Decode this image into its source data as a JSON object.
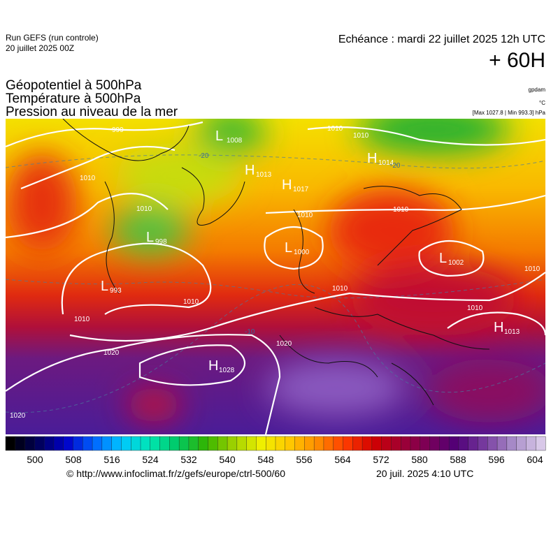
{
  "header": {
    "run": "Run GEFS (run controle)",
    "run_date": "20 juillet 2025 00Z",
    "valid": "Echéance : mardi 22 juillet 2025 12h UTC",
    "lead": "+ 60H"
  },
  "titles": [
    "Géopotentiel à 500hPa",
    "Température à 500hPa",
    "Pression au niveau de la mer"
  ],
  "units": {
    "geopotential": "gpdam",
    "temperature": "°C",
    "pressure": "[Max 1027.8 | Min 993.3] hPa"
  },
  "centers": [
    {
      "letter": "L",
      "value": "1008"
    },
    {
      "letter": "H",
      "value": "1013"
    },
    {
      "letter": "H",
      "value": "1017"
    },
    {
      "letter": "H",
      "value": "1014"
    },
    {
      "letter": "L",
      "value": "998"
    },
    {
      "letter": "L",
      "value": "1000"
    },
    {
      "letter": "L",
      "value": "1002"
    },
    {
      "letter": "L",
      "value": "993"
    },
    {
      "letter": "H",
      "value": "1013"
    },
    {
      "letter": "H",
      "value": "1028"
    }
  ],
  "isobar_labels": [
    "999",
    "1010",
    "1010",
    "1010",
    "1010",
    "1010",
    "1010",
    "1010",
    "1010",
    "1010",
    "1010",
    "1020",
    "1020",
    "1020",
    "1010"
  ],
  "temperature_labels": [
    "-20",
    "-20",
    "-10"
  ],
  "colorbar": {
    "ticks": [
      500,
      508,
      516,
      524,
      532,
      540,
      548,
      556,
      564,
      572,
      580,
      588,
      596,
      604
    ]
  },
  "footer": {
    "source": "© http://www.infoclimat.fr/z/gefs/europe/ctrl-500/60",
    "generated": "20 juil. 2025  4:10 UTC"
  }
}
